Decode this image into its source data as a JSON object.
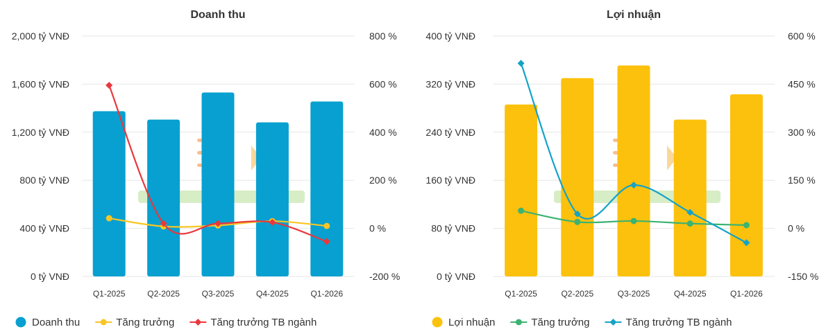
{
  "chart_data": [
    {
      "type": "bar",
      "title": "Doanh thu",
      "categories": [
        "Q1-2025",
        "Q2-2025",
        "Q3-2025",
        "Q4-2025",
        "Q1-2026"
      ],
      "y_left": {
        "ticks": [
          "0 tỷ VNĐ",
          "400 tỷ VNĐ",
          "800 tỷ VNĐ",
          "1,200 tỷ VNĐ",
          "1,600 tỷ VNĐ",
          "2,000 tỷ VNĐ"
        ],
        "range": [
          0,
          2000
        ]
      },
      "y_right": {
        "ticks": [
          "-200 %",
          "0 %",
          "200 %",
          "400 %",
          "600 %",
          "800 %"
        ],
        "range": [
          -200,
          800
        ]
      },
      "grid": true,
      "legend_position": "bottom",
      "series": [
        {
          "name": "Doanh thu",
          "kind": "bar",
          "axis": "left",
          "color": "#08a0d0",
          "marker": "circle",
          "values": [
            1375,
            1305,
            1530,
            1282,
            1455
          ]
        },
        {
          "name": "Tăng trưởng",
          "kind": "line",
          "axis": "right",
          "color": "#f8c623",
          "marker": "circle",
          "values": [
            42,
            8,
            12,
            30,
            10
          ]
        },
        {
          "name": "Tăng trưởng TB ngành",
          "kind": "line",
          "axis": "right",
          "color": "#e8383d",
          "marker": "diamond",
          "values": [
            595,
            20,
            20,
            25,
            -55
          ]
        }
      ]
    },
    {
      "type": "bar",
      "title": "Lợi nhuận",
      "categories": [
        "Q1-2025",
        "Q2-2025",
        "Q3-2025",
        "Q4-2025",
        "Q1-2026"
      ],
      "y_left": {
        "ticks": [
          "0 tỷ VNĐ",
          "80 tỷ VNĐ",
          "160 tỷ VNĐ",
          "240 tỷ VNĐ",
          "320 tỷ VNĐ",
          "400 tỷ VNĐ"
        ],
        "range": [
          0,
          400
        ]
      },
      "y_right": {
        "ticks": [
          "-150 %",
          "0 %",
          "150 %",
          "300 %",
          "450 %",
          "600 %"
        ],
        "range": [
          -150,
          600
        ]
      },
      "grid": true,
      "legend_position": "bottom",
      "series": [
        {
          "name": "Lợi nhuận",
          "kind": "bar",
          "axis": "left",
          "color": "#fcc10c",
          "marker": "circle",
          "values": [
            286,
            330,
            351,
            261,
            303
          ]
        },
        {
          "name": "Tăng trưởng",
          "kind": "line",
          "axis": "right",
          "color": "#3cb371",
          "marker": "circle",
          "values": [
            55,
            20,
            23,
            15,
            10
          ]
        },
        {
          "name": "Tăng trưởng TB ngành",
          "kind": "line",
          "axis": "right",
          "color": "#14a3c7",
          "marker": "diamond",
          "values": [
            515,
            45,
            135,
            50,
            -45
          ]
        }
      ]
    }
  ]
}
